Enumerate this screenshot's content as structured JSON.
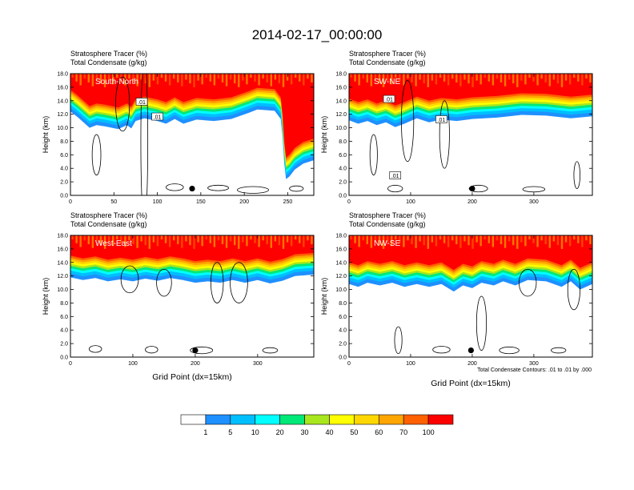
{
  "title": "2014-02-17_00:00:00",
  "footer_note": "Total Condensate Contours: .01 to .01 by .000",
  "chart_data": [
    {
      "type": "heatmap",
      "name": "South-North",
      "labels": [
        "Stratosphere Tracer   (%)",
        "Total Condensate   (g/kg)"
      ],
      "xlabel": "",
      "ylabel": "Height (km)",
      "xlim": [
        0,
        280
      ],
      "ylim": [
        0,
        18
      ],
      "xticks": [
        0,
        50,
        100,
        150,
        200,
        250
      ],
      "yticks": [
        "0.0",
        "2.0",
        "4.0",
        "6.0",
        "8.0",
        "10.0",
        "12.0",
        "14.0",
        "16.0",
        "18.0"
      ],
      "tracer_base_km": [
        [
          0,
          15.6
        ],
        [
          8,
          14.8
        ],
        [
          15,
          14.0
        ],
        [
          22,
          13.2
        ],
        [
          30,
          13.6
        ],
        [
          40,
          13.4
        ],
        [
          55,
          13.0
        ],
        [
          65,
          13.6
        ],
        [
          70,
          13.1
        ],
        [
          75,
          14.2
        ],
        [
          85,
          14.6
        ],
        [
          100,
          14.2
        ],
        [
          110,
          13.8
        ],
        [
          120,
          14.5
        ],
        [
          130,
          13.8
        ],
        [
          145,
          14.4
        ],
        [
          165,
          14.2
        ],
        [
          185,
          14.5
        ],
        [
          205,
          15.4
        ],
        [
          215,
          15.9
        ],
        [
          235,
          15.7
        ],
        [
          242,
          14.5
        ],
        [
          244,
          12.0
        ],
        [
          246,
          8.0
        ],
        [
          248,
          5.6
        ],
        [
          252,
          6.0
        ],
        [
          258,
          7.0
        ],
        [
          268,
          7.9
        ],
        [
          280,
          8.4
        ]
      ],
      "contour_labels": [
        ".01",
        ".01"
      ],
      "marker": [
        140,
        1.0
      ],
      "fringe_bands": [
        {
          "name": "Total Condensate contours",
          "points": []
        }
      ]
    },
    {
      "type": "heatmap",
      "name": "SW-NE",
      "labels": [
        "Stratosphere Tracer   (%)",
        "Total Condensate   (g/kg)"
      ],
      "xlabel": "",
      "ylabel": "Height (km)",
      "xlim": [
        0,
        395
      ],
      "ylim": [
        0,
        18
      ],
      "xticks": [
        0,
        100,
        200,
        300
      ],
      "yticks": [
        "0.0",
        "2.0",
        "4.0",
        "6.0",
        "8.0",
        "10.0",
        "12.0",
        "14.0",
        "16.0",
        "18.0"
      ],
      "tracer_base_km": [
        [
          0,
          14.3
        ],
        [
          15,
          13.8
        ],
        [
          30,
          14.2
        ],
        [
          45,
          13.6
        ],
        [
          60,
          14.0
        ],
        [
          75,
          13.3
        ],
        [
          90,
          13.8
        ],
        [
          110,
          14.6
        ],
        [
          130,
          14.0
        ],
        [
          150,
          14.4
        ],
        [
          175,
          14.2
        ],
        [
          200,
          14.5
        ],
        [
          240,
          14.7
        ],
        [
          280,
          15.1
        ],
        [
          320,
          15.0
        ],
        [
          360,
          14.6
        ],
        [
          395,
          14.9
        ]
      ],
      "contour_labels": [
        ".01",
        ".01",
        ".01"
      ],
      "marker": [
        200,
        1.0
      ]
    },
    {
      "type": "heatmap",
      "name": "West-East",
      "labels": [
        "Stratosphere Tracer   (%)",
        "Total Condensate   (g/kg)"
      ],
      "xlabel": "Grid Point (dx=15km)",
      "ylabel": "Height (km)",
      "xlim": [
        0,
        390
      ],
      "ylim": [
        0,
        18
      ],
      "xticks": [
        0,
        100,
        200,
        300
      ],
      "yticks": [
        "0.0",
        "2.0",
        "4.0",
        "6.0",
        "8.0",
        "10.0",
        "12.0",
        "14.0",
        "16.0",
        "18.0"
      ],
      "tracer_base_km": [
        [
          0,
          15.0
        ],
        [
          20,
          14.6
        ],
        [
          40,
          14.9
        ],
        [
          60,
          14.4
        ],
        [
          80,
          14.7
        ],
        [
          100,
          14.4
        ],
        [
          120,
          14.8
        ],
        [
          140,
          14.5
        ],
        [
          160,
          14.9
        ],
        [
          180,
          14.6
        ],
        [
          200,
          14.2
        ],
        [
          220,
          14.4
        ],
        [
          240,
          14.2
        ],
        [
          260,
          14.6
        ],
        [
          280,
          14.2
        ],
        [
          300,
          14.6
        ],
        [
          320,
          14.1
        ],
        [
          340,
          14.5
        ],
        [
          360,
          15.2
        ],
        [
          390,
          15.4
        ]
      ],
      "contour_labels": [],
      "marker": [
        200,
        1.0
      ]
    },
    {
      "type": "heatmap",
      "name": "NW-SE",
      "labels": [
        "Stratosphere Tracer   (%)",
        "Total Condensate   (g/kg)"
      ],
      "xlabel": "Grid Point (dx=15km)",
      "ylabel": "Height (km)",
      "xlim": [
        0,
        395
      ],
      "ylim": [
        0,
        18
      ],
      "xticks": [
        0,
        100,
        200,
        300
      ],
      "yticks": [
        "0.0",
        "2.0",
        "4.0",
        "6.0",
        "8.0",
        "10.0",
        "12.0",
        "14.0",
        "16.0",
        "18.0"
      ],
      "tracer_base_km": [
        [
          0,
          14.0
        ],
        [
          15,
          13.6
        ],
        [
          30,
          14.2
        ],
        [
          50,
          13.8
        ],
        [
          70,
          14.2
        ],
        [
          90,
          13.6
        ],
        [
          110,
          14.0
        ],
        [
          130,
          13.6
        ],
        [
          150,
          14.0
        ],
        [
          170,
          12.9
        ],
        [
          185,
          13.8
        ],
        [
          200,
          13.4
        ],
        [
          215,
          14.2
        ],
        [
          235,
          13.8
        ],
        [
          250,
          14.4
        ],
        [
          270,
          13.8
        ],
        [
          290,
          14.6
        ],
        [
          320,
          14.4
        ],
        [
          345,
          13.6
        ],
        [
          360,
          14.4
        ],
        [
          375,
          13.2
        ],
        [
          395,
          14.0
        ]
      ],
      "contour_labels": [],
      "marker": [
        198,
        1.0
      ]
    }
  ],
  "colorbar": {
    "labels": [
      "1",
      "5",
      "10",
      "20",
      "30",
      "40",
      "50",
      "60",
      "70",
      "100"
    ],
    "colors": [
      "#ffffff",
      "#1e90ff",
      "#00bfff",
      "#00ffff",
      "#00e878",
      "#00e600",
      "#a8e61e",
      "#ffff00",
      "#ffd700",
      "#ffa500",
      "#ff6000",
      "#ff0000"
    ]
  }
}
